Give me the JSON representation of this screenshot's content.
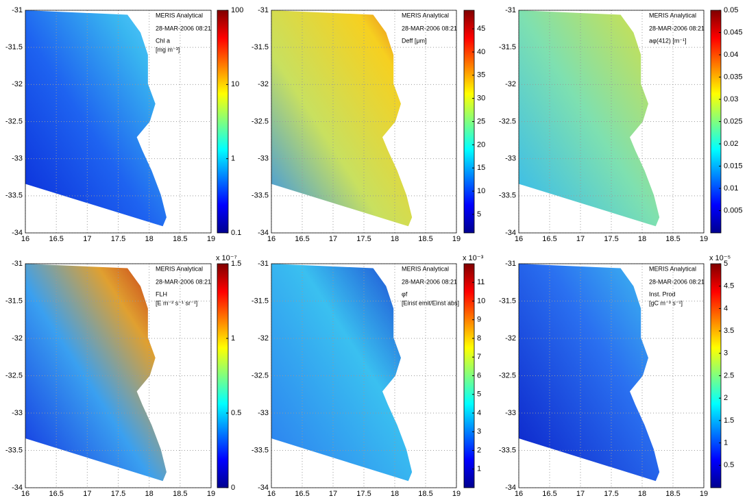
{
  "chart_data": [
    {
      "type": "map",
      "annotations": [
        "MERIS Analytical",
        "28-MAR-2006 08:21",
        "Chl a",
        "[mg m⁻³]"
      ],
      "xlim": [
        16,
        19
      ],
      "xticks": [
        16,
        16.5,
        17,
        17.5,
        18,
        18.5,
        19
      ],
      "ylim": [
        -34,
        -31
      ],
      "yticks": [
        -31,
        -31.5,
        -32,
        -32.5,
        -33,
        -33.5,
        -34
      ],
      "grid": true,
      "colormap": "jet",
      "colorbar": {
        "scale": "log",
        "lim": [
          0.1,
          100
        ],
        "ticks": [
          0.1,
          1,
          10,
          100
        ]
      }
    },
    {
      "type": "map",
      "annotations": [
        "MERIS Analytical",
        "28-MAR-2006 08:21",
        "Deff [μm]"
      ],
      "xlim": [
        16,
        19
      ],
      "xticks": [
        16,
        16.5,
        17,
        17.5,
        18,
        18.5,
        19
      ],
      "ylim": [
        -34,
        -31
      ],
      "yticks": [
        -31,
        -31.5,
        -32,
        -32.5,
        -33,
        -33.5,
        -34
      ],
      "grid": true,
      "colormap": "jet",
      "colorbar": {
        "scale": "linear",
        "lim": [
          1,
          49
        ],
        "ticks": [
          5,
          10,
          15,
          20,
          25,
          30,
          35,
          40,
          45
        ]
      }
    },
    {
      "type": "map",
      "annotations": [
        "MERIS Analytical",
        "28-MAR-2006 08:21",
        "aφ(412) [m⁻¹]"
      ],
      "xlim": [
        16,
        19
      ],
      "xticks": [
        16,
        16.5,
        17,
        17.5,
        18,
        18.5,
        19
      ],
      "ylim": [
        -34,
        -31
      ],
      "yticks": [
        -31,
        -31.5,
        -32,
        -32.5,
        -33,
        -33.5,
        -34
      ],
      "grid": true,
      "colormap": "jet",
      "colorbar": {
        "scale": "linear",
        "lim": [
          0,
          0.05
        ],
        "ticks": [
          0.005,
          0.01,
          0.015,
          0.02,
          0.025,
          0.03,
          0.035,
          0.04,
          0.045,
          0.05
        ]
      }
    },
    {
      "type": "map",
      "annotations": [
        "MERIS Analytical",
        "28-MAR-2006 08:21",
        "FLH",
        "[E m⁻² s⁻¹ sr⁻¹]"
      ],
      "xlim": [
        16,
        19
      ],
      "xticks": [
        16,
        16.5,
        17,
        17.5,
        18,
        18.5,
        19
      ],
      "ylim": [
        -34,
        -31
      ],
      "yticks": [
        -31,
        -31.5,
        -32,
        -32.5,
        -33,
        -33.5,
        -34
      ],
      "grid": true,
      "colormap": "jet",
      "colorbar": {
        "scale": "linear",
        "lim": [
          0,
          1.5
        ],
        "ticks": [
          0,
          0.5,
          1,
          1.5
        ],
        "multiplier": "x 10⁻⁷"
      }
    },
    {
      "type": "map",
      "annotations": [
        "MERIS Analytical",
        "28-MAR-2006 08:21",
        "φf",
        "[Einst emit/Einst abs]"
      ],
      "xlim": [
        16,
        19
      ],
      "xticks": [
        16,
        16.5,
        17,
        17.5,
        18,
        18.5,
        19
      ],
      "ylim": [
        -34,
        -31
      ],
      "yticks": [
        -31,
        -31.5,
        -32,
        -32.5,
        -33,
        -33.5,
        -34
      ],
      "grid": true,
      "colormap": "jet",
      "colorbar": {
        "scale": "linear",
        "lim": [
          0,
          12
        ],
        "ticks": [
          1,
          2,
          3,
          4,
          5,
          6,
          7,
          8,
          9,
          10,
          11
        ],
        "multiplier": "x 10⁻³"
      }
    },
    {
      "type": "map",
      "annotations": [
        "MERIS Analytical",
        "28-MAR-2006 08:21",
        "Inst. Prod",
        "[gC m⁻³ s⁻¹]"
      ],
      "xlim": [
        16,
        19
      ],
      "xticks": [
        16,
        16.5,
        17,
        17.5,
        18,
        18.5,
        19
      ],
      "ylim": [
        -34,
        -31
      ],
      "yticks": [
        -31,
        -31.5,
        -32,
        -32.5,
        -33,
        -33.5,
        -34
      ],
      "grid": true,
      "colormap": "jet",
      "colorbar": {
        "scale": "linear",
        "lim": [
          0,
          5
        ],
        "ticks": [
          0.5,
          1,
          1.5,
          2,
          2.5,
          3,
          3.5,
          4,
          4.5,
          5
        ],
        "multiplier": "x 10⁻⁵"
      }
    }
  ]
}
